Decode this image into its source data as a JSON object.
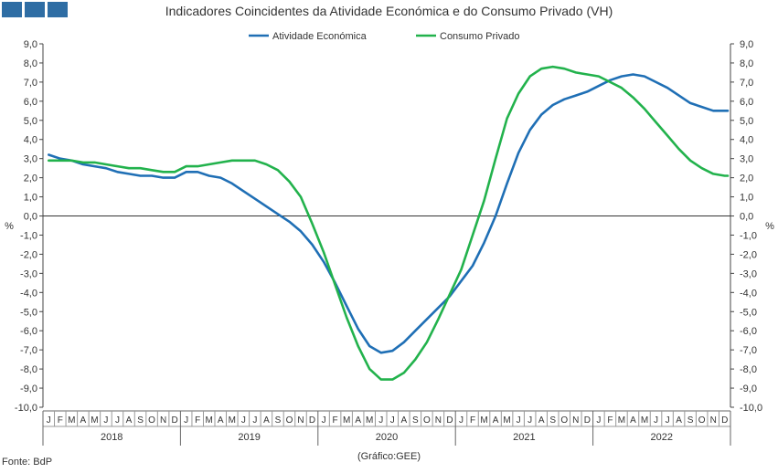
{
  "title": "Indicadores Coincidentes da Atividade Económica e do Consumo Privado (VH)",
  "source": "Fonte: BdP",
  "credit": "(Gráfico:GEE)",
  "colors": {
    "atividade": "#1f6fb5",
    "consumo": "#22b24c",
    "logo": "#2e6da4"
  },
  "chart_data": {
    "type": "line",
    "title": "Indicadores Coincidentes da Atividade Económica e do Consumo Privado (VH)",
    "ylabel_left": "%",
    "ylabel_right": "%",
    "ylim": [
      -10,
      9
    ],
    "yticks": [
      "9,0",
      "8,0",
      "7,0",
      "6,0",
      "5,0",
      "4,0",
      "3,0",
      "2,0",
      "1,0",
      "0,0",
      "-1,0",
      "-2,0",
      "-3,0",
      "-4,0",
      "-5,0",
      "-6,0",
      "-7,0",
      "-8,0",
      "-9,0",
      "-10,0"
    ],
    "legend_position": "top-center",
    "grid": false,
    "months": [
      "J",
      "F",
      "M",
      "A",
      "M",
      "J",
      "J",
      "A",
      "S",
      "O",
      "N",
      "D"
    ],
    "years": [
      "2018",
      "2019",
      "2020",
      "2021",
      "2022"
    ],
    "series": [
      {
        "name": "Atividade Económica",
        "color": "#1f6fb5",
        "values": [
          3.2,
          3.0,
          2.9,
          2.7,
          2.6,
          2.5,
          2.3,
          2.2,
          2.1,
          2.1,
          2.0,
          2.0,
          2.3,
          2.3,
          2.1,
          2.0,
          1.7,
          1.3,
          0.9,
          0.5,
          0.1,
          -0.3,
          -0.8,
          -1.5,
          -2.4,
          -3.5,
          -4.7,
          -5.9,
          -6.8,
          -7.15,
          -7.05,
          -6.6,
          -6.0,
          -5.4,
          -4.8,
          -4.2,
          -3.4,
          -2.6,
          -1.4,
          0.0,
          1.7,
          3.3,
          4.5,
          5.3,
          5.8,
          6.1,
          6.3,
          6.5,
          6.8,
          7.1,
          7.3,
          7.4,
          7.3,
          7.0,
          6.7,
          6.3,
          5.9,
          5.7,
          5.5,
          5.5,
          5.5
        ]
      },
      {
        "name": "Consumo Privado",
        "color": "#22b24c",
        "values": [
          2.9,
          2.9,
          2.9,
          2.8,
          2.8,
          2.7,
          2.6,
          2.5,
          2.5,
          2.4,
          2.3,
          2.3,
          2.6,
          2.6,
          2.7,
          2.8,
          2.9,
          2.9,
          2.9,
          2.7,
          2.4,
          1.8,
          1.0,
          -0.4,
          -1.9,
          -3.6,
          -5.3,
          -6.8,
          -8.0,
          -8.55,
          -8.55,
          -8.2,
          -7.5,
          -6.6,
          -5.4,
          -4.1,
          -2.8,
          -1.0,
          0.8,
          3.0,
          5.1,
          6.4,
          7.3,
          7.7,
          7.8,
          7.7,
          7.5,
          7.4,
          7.3,
          7.0,
          6.7,
          6.2,
          5.6,
          4.9,
          4.2,
          3.5,
          2.9,
          2.5,
          2.2,
          2.1,
          2.1
        ]
      }
    ]
  }
}
